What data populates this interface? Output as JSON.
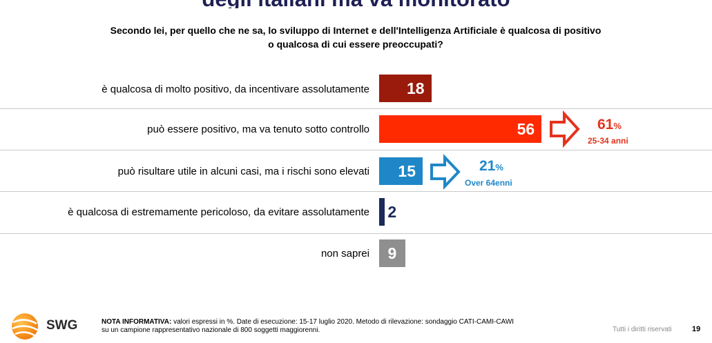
{
  "header": {
    "title": "degli italiani ma va monitorato",
    "question_line1": "Secondo lei, per quello che ne sa, lo sviluppo di Internet e dell'Intelligenza Artificiale è qualcosa di positivo",
    "question_line2": "o qualcosa di cui essere preoccupati?"
  },
  "chart_data": {
    "type": "bar",
    "orientation": "horizontal",
    "unit": "%",
    "categories": [
      "è qualcosa di molto positivo, da incentivare assolutamente",
      "può essere positivo, ma va tenuto sotto controllo",
      "può risultare utile in alcuni casi, ma i rischi sono elevati",
      "è qualcosa di estremamente pericoloso, da evitare assolutamente",
      "non saprei"
    ],
    "values": [
      18,
      56,
      15,
      2,
      9
    ],
    "colors": [
      "#9a1b0b",
      "#ff2a00",
      "#1f87c8",
      "#1b2a5a",
      "#8f8f8f"
    ],
    "annotations": [
      {
        "category_index": 1,
        "value": "61",
        "unit": "%",
        "label": "25-34 anni",
        "color": "#e3341d"
      },
      {
        "category_index": 2,
        "value": "21",
        "unit": "%",
        "label": "Over 64enni",
        "color": "#1f87c8"
      }
    ]
  },
  "footer": {
    "logo_text": "SWG",
    "note_label": "NOTA INFORMATIVA:",
    "note_line1": "valori espressi in %. Date di esecuzione: 15-17 luglio 2020. Metodo di rilevazione: sondaggio CATI-CAMI-CAWI",
    "note_line2": "su un campione rappresentativo nazionale di 800 soggetti maggiorenni.",
    "rights": "Tutti i diritti riservati",
    "page_number": "19"
  }
}
